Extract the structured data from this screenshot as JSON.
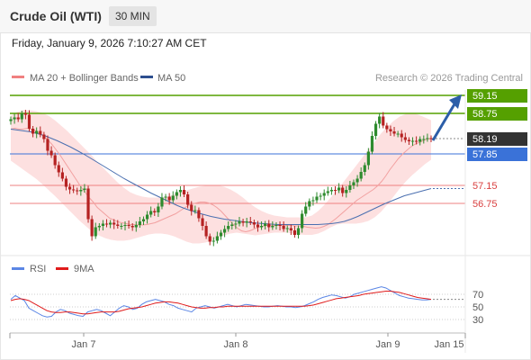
{
  "header": {
    "title": "Crude Oil (WTI)",
    "timeframe": "30 MIN",
    "datetime": "Friday, January 9, 2026 7:10:27 AM CET"
  },
  "legend": {
    "bollinger": "MA 20 + Bollinger Bands",
    "ma50": "MA 50",
    "credit": "Research © 2026 Trading Central",
    "rsi": "RSI",
    "rsi_ma": "9MA"
  },
  "colors": {
    "resistance": "#55a000",
    "support": "#ee8080",
    "pivot": "#3a72d8",
    "current": "#333333",
    "bull_candle": "#2e8b2e",
    "bear_candle": "#b52222",
    "bollinger_fill": "#fde0e0",
    "ma20": "#f2a0a0",
    "ma50": "#4a6fb0",
    "rsi_line": "#5b86e5",
    "rsi_ma_line": "#e01b1b",
    "arrow": "#2c5ea8"
  },
  "chart_data": {
    "type": "candlestick",
    "instrument": "Crude Oil (WTI)",
    "interval": "30 MIN",
    "x_tick_labels": [
      "Jan 7",
      "Jan 8",
      "Jan 9",
      "Jan 15"
    ],
    "levels": [
      {
        "label": "59.15",
        "value": 59.15,
        "kind": "resistance"
      },
      {
        "label": "58.75",
        "value": 58.75,
        "kind": "resistance"
      },
      {
        "label": "58.19",
        "value": 58.19,
        "kind": "current"
      },
      {
        "label": "57.85",
        "value": 57.85,
        "kind": "pivot"
      },
      {
        "label": "57.15",
        "value": 57.15,
        "kind": "support"
      },
      {
        "label": "56.75",
        "value": 56.75,
        "kind": "support"
      }
    ],
    "close": [
      58.62,
      58.66,
      58.62,
      58.75,
      58.72,
      58.41,
      58.3,
      58.36,
      58.28,
      58.18,
      57.92,
      57.82,
      57.6,
      57.44,
      57.3,
      57.12,
      57.06,
      57.04,
      57.02,
      57.05,
      57.08,
      56.4,
      56.02,
      56.22,
      56.25,
      56.3,
      56.28,
      56.32,
      56.28,
      56.25,
      56.25,
      56.27,
      56.25,
      56.22,
      56.27,
      56.35,
      56.4,
      56.5,
      56.58,
      56.55,
      56.68,
      56.88,
      56.9,
      56.82,
      56.92,
      57.0,
      57.05,
      56.95,
      56.72,
      56.58,
      56.6,
      56.42,
      56.25,
      56.02,
      55.9,
      55.92,
      56.02,
      56.1,
      56.18,
      56.25,
      56.28,
      56.3,
      56.35,
      56.32,
      56.35,
      56.33,
      56.28,
      56.22,
      56.25,
      56.3,
      56.22,
      56.25,
      56.27,
      56.25,
      56.18,
      56.2,
      56.15,
      56.05,
      56.2,
      56.52,
      56.68,
      56.8,
      56.82,
      56.9,
      56.92,
      56.98,
      57.02,
      57.05,
      57.04,
      57.1,
      56.98,
      57.05,
      57.15,
      57.22,
      57.3,
      57.45,
      57.6,
      57.9,
      58.25,
      58.52,
      58.68,
      58.48,
      58.4,
      58.35,
      58.3,
      58.3,
      58.22,
      58.16,
      58.13,
      58.14,
      58.12,
      58.18,
      58.18,
      58.2,
      58.19
    ],
    "ma20": [
      58.4,
      58.42,
      58.4,
      58.4,
      58.42,
      58.4,
      58.36,
      58.3,
      58.24,
      58.16,
      58.06,
      57.94,
      57.82,
      57.68,
      57.54,
      57.4,
      57.26,
      57.12,
      57.0,
      56.88,
      56.78,
      56.66,
      56.58,
      56.5,
      56.42,
      56.38,
      56.34,
      56.32,
      56.3,
      56.28,
      56.28,
      56.27,
      56.27,
      56.28,
      56.3,
      56.32,
      56.36,
      56.4,
      56.44,
      56.48,
      56.52,
      56.58,
      56.64,
      56.7,
      56.74,
      56.76,
      56.78,
      56.78,
      56.76,
      56.72,
      56.66,
      56.58,
      56.48,
      56.38,
      56.28,
      56.2,
      56.14,
      56.12,
      56.14,
      56.18,
      56.22,
      56.24,
      56.26,
      56.26,
      56.26,
      56.26,
      56.26,
      56.26,
      56.26,
      56.25,
      56.25,
      56.24,
      56.22,
      56.21,
      56.2,
      56.21,
      56.24,
      56.28,
      56.35,
      56.42,
      56.5,
      56.58,
      56.66,
      56.74,
      56.82,
      56.88,
      56.94,
      57.0,
      57.06,
      57.14,
      57.24,
      57.36,
      57.5,
      57.62,
      57.74,
      57.84,
      57.92,
      58.0,
      58.06,
      58.1,
      58.14,
      58.18,
      58.19
    ],
    "ma50": [
      58.4,
      58.38,
      58.36,
      58.34,
      58.3,
      58.26,
      58.2,
      58.14,
      58.07,
      58.0,
      57.92,
      57.84,
      57.75,
      57.66,
      57.57,
      57.48,
      57.39,
      57.3,
      57.22,
      57.14,
      57.06,
      56.98,
      56.91,
      56.84,
      56.77,
      56.7,
      56.64,
      56.59,
      56.54,
      56.5,
      56.46,
      56.43,
      56.4,
      56.38,
      56.36,
      56.34,
      56.32,
      56.31,
      56.3,
      56.29,
      56.28,
      56.28,
      56.28,
      56.28,
      56.28,
      56.28,
      56.28,
      56.29,
      56.3,
      56.32,
      56.35,
      56.4,
      56.46,
      56.53,
      56.6,
      56.67,
      56.74,
      56.8,
      56.86,
      56.92,
      56.96,
      57.0,
      57.04,
      57.08
    ],
    "bollinger_upper": [
      58.7,
      58.78,
      58.82,
      58.82,
      58.8,
      58.76,
      58.7,
      58.6,
      58.48,
      58.36,
      58.22,
      58.08,
      57.94,
      57.8,
      57.64,
      57.5,
      57.36,
      57.22,
      57.1,
      57.0,
      56.94,
      56.9,
      56.88,
      56.88,
      56.88,
      56.9,
      56.95,
      57.0,
      57.04,
      57.08,
      57.12,
      57.14,
      57.15,
      57.15,
      57.12,
      57.06,
      56.98,
      56.88,
      56.76,
      56.66,
      56.58,
      56.52,
      56.48,
      56.46,
      56.44,
      56.44,
      56.44,
      56.44,
      56.48,
      56.58,
      56.72,
      56.88,
      57.05,
      57.22,
      57.4,
      57.58,
      57.76,
      57.94,
      58.12,
      58.3,
      58.45,
      58.58,
      58.68,
      58.74,
      58.76,
      58.72,
      58.66,
      58.6
    ],
    "bollinger_lower": [
      57.7,
      57.6,
      57.5,
      57.4,
      57.3,
      57.18,
      57.05,
      56.92,
      56.78,
      56.64,
      56.5,
      56.36,
      56.24,
      56.12,
      56.04,
      55.98,
      55.94,
      55.92,
      55.92,
      55.94,
      55.98,
      56.02,
      56.06,
      56.08,
      56.08,
      56.06,
      56.02,
      55.96,
      55.9,
      55.86,
      55.86,
      55.88,
      55.92,
      55.98,
      56.04,
      56.08,
      56.1,
      56.08,
      56.06,
      56.04,
      56.06,
      56.08,
      56.1,
      56.1,
      56.1,
      56.08,
      56.06,
      56.05,
      56.05,
      56.08,
      56.14,
      56.22,
      56.28,
      56.3,
      56.3,
      56.3,
      56.32,
      56.36,
      56.44,
      56.56,
      56.72,
      56.9,
      57.08,
      57.24,
      57.38,
      57.5,
      57.62,
      57.72
    ],
    "rsi": [
      62,
      68,
      64,
      60,
      48,
      44,
      40,
      36,
      34,
      35,
      42,
      46,
      44,
      40,
      38,
      36,
      35,
      42,
      44,
      46,
      44,
      40,
      36,
      42,
      48,
      52,
      50,
      46,
      48,
      54,
      58,
      60,
      62,
      60,
      58,
      54,
      52,
      48,
      46,
      44,
      42,
      48,
      50,
      52,
      50,
      48,
      50,
      52,
      54,
      52,
      50,
      52,
      54,
      53,
      52,
      51,
      50,
      50,
      51,
      52,
      51,
      50,
      50,
      49,
      50,
      52,
      55,
      58,
      62,
      65,
      67,
      69,
      68,
      66,
      64,
      66,
      70,
      72,
      74,
      76,
      78,
      80,
      82,
      80,
      76,
      72,
      68,
      66,
      64,
      63,
      62,
      61,
      61,
      62
    ],
    "rsi_ma": [
      60,
      62,
      63,
      62,
      60,
      56,
      52,
      48,
      44,
      42,
      41,
      41,
      42,
      42,
      41,
      40,
      39,
      39,
      40,
      41,
      42,
      42,
      42,
      42,
      43,
      45,
      47,
      48,
      49,
      50,
      52,
      54,
      56,
      57,
      58,
      58,
      57,
      56,
      54,
      52,
      50,
      49,
      48,
      48,
      49,
      49,
      50,
      50,
      51,
      51,
      51,
      51,
      51,
      51,
      51,
      51,
      51,
      51,
      51,
      51,
      51,
      51,
      51,
      51,
      51,
      51,
      52,
      53,
      55,
      57,
      59,
      61,
      63,
      64,
      65,
      66,
      67,
      68,
      70,
      71,
      72,
      73,
      74,
      75,
      75,
      74,
      73,
      71,
      69,
      67,
      65,
      64,
      63,
      62
    ],
    "rsi_ticks": [
      "70",
      "50",
      "30"
    ],
    "projection": {
      "from": 58.19,
      "to": 59.15
    }
  }
}
